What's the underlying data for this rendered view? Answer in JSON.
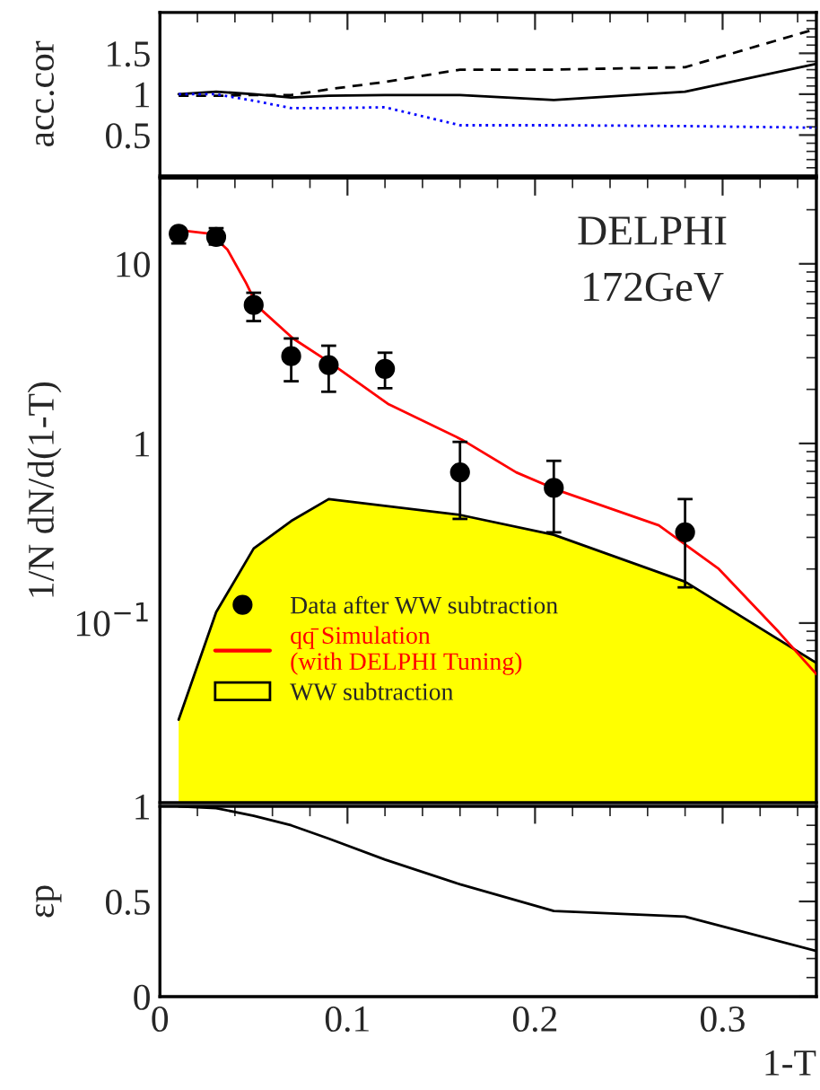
{
  "chart_data": [
    {
      "type": "line",
      "ylabel": "acc.cor",
      "xlim": [
        0,
        0.35
      ],
      "xticks": [
        0,
        0.1,
        0.2,
        0.3
      ],
      "ylim": [
        0,
        2
      ],
      "yticks": [
        0.5,
        1,
        1.5
      ],
      "tick_labels": "y",
      "grid": false,
      "legend": false,
      "series": [
        {
          "color": "#000000",
          "line_style": "solid",
          "x": [
            0.01,
            0.03,
            0.05,
            0.07,
            0.09,
            0.12,
            0.16,
            0.21,
            0.28,
            0.35
          ],
          "values": [
            1.0,
            1.03,
            1.0,
            0.96,
            0.98,
            0.99,
            0.99,
            0.93,
            1.03,
            1.37
          ]
        },
        {
          "color": "#000000",
          "line_style": "dashed",
          "x": [
            0.01,
            0.03,
            0.05,
            0.07,
            0.09,
            0.12,
            0.16,
            0.21,
            0.28,
            0.35
          ],
          "values": [
            0.98,
            0.98,
            0.99,
            0.99,
            1.06,
            1.15,
            1.3,
            1.3,
            1.33,
            1.8
          ]
        },
        {
          "color": "#0000ff",
          "line_style": "dotted",
          "x": [
            0.01,
            0.03,
            0.05,
            0.07,
            0.09,
            0.12,
            0.16,
            0.21,
            0.28,
            0.35
          ],
          "values": [
            1.0,
            1.0,
            0.92,
            0.83,
            0.83,
            0.84,
            0.62,
            0.62,
            0.61,
            0.59
          ]
        }
      ]
    },
    {
      "type": "scatter",
      "ylabel": "1/N dN/d(1-T)",
      "xlim": [
        0,
        0.35
      ],
      "xticks": [
        0,
        0.1,
        0.2,
        0.3
      ],
      "ylim": [
        0.01,
        30
      ],
      "log": true,
      "yticks": [
        {
          "value": 10,
          "label": "10"
        },
        {
          "value": 1,
          "label": "1"
        },
        {
          "value": 0.1,
          "label": "10$^{−1}$"
        }
      ],
      "tick_labels": "y",
      "grid": false,
      "legend": "bottom left",
      "annotations": [
        "DELPHI",
        "172GeV"
      ],
      "series": [
        {
          "type": "scatter",
          "name": "Data after WW subtraction",
          "color": "#000000",
          "marker": "circle",
          "x": [
            0.01,
            0.03,
            0.05,
            0.07,
            0.09,
            0.12,
            0.16,
            0.21,
            0.28
          ],
          "values": [
            14.7,
            14.1,
            5.9,
            3.06,
            2.73,
            2.6,
            0.69,
            0.565,
            0.32
          ],
          "errors": [
            [
              13.0,
              15.8
            ],
            [
              12.8,
              15.8
            ],
            [
              4.8,
              6.9
            ],
            [
              2.22,
              3.84
            ],
            [
              1.94,
              3.5
            ],
            [
              2.03,
              3.2
            ],
            [
              0.38,
              1.02
            ],
            [
              0.32,
              0.8
            ],
            [
              0.158,
              0.49
            ]
          ]
        },
        {
          "type": "line",
          "name": "qq̄ Simulation\n(with DELPHI Tuning)",
          "color": "#ff0000",
          "x": [
            0.0105,
            0.027,
            0.036,
            0.046,
            0.052,
            0.071,
            0.09,
            0.122,
            0.161,
            0.19,
            0.212,
            0.266,
            0.298,
            0.33,
            0.35
          ],
          "values": [
            15.4,
            14.7,
            12.0,
            7.8,
            5.8,
            3.84,
            2.85,
            1.65,
            1.05,
            0.69,
            0.55,
            0.35,
            0.2,
            0.089,
            0.052
          ]
        },
        {
          "type": "area",
          "name": "WW subtraction",
          "color": "#ffff00",
          "x": [
            0.01,
            0.03,
            0.05,
            0.07,
            0.09,
            0.16,
            0.21,
            0.28,
            0.35
          ],
          "values": [
            0.029,
            0.115,
            0.26,
            0.37,
            0.49,
            0.4,
            0.31,
            0.17,
            0.06
          ]
        }
      ]
    },
    {
      "type": "line",
      "ylabel": "εp",
      "xlabel": "1-T",
      "xlim": [
        0,
        0.35
      ],
      "xticks": [
        0,
        0.1,
        0.2,
        0.3
      ],
      "ylim": [
        0,
        1
      ],
      "yticks": [
        0,
        0.5,
        1
      ],
      "grid": false,
      "legend": false,
      "series": [
        {
          "color": "#000000",
          "line_style": "solid",
          "x": [
            0.01,
            0.03,
            0.05,
            0.07,
            0.09,
            0.12,
            0.16,
            0.21,
            0.28,
            0.35
          ],
          "values": [
            1.0,
            0.99,
            0.95,
            0.9,
            0.83,
            0.72,
            0.59,
            0.45,
            0.42,
            0.24
          ]
        }
      ]
    }
  ]
}
